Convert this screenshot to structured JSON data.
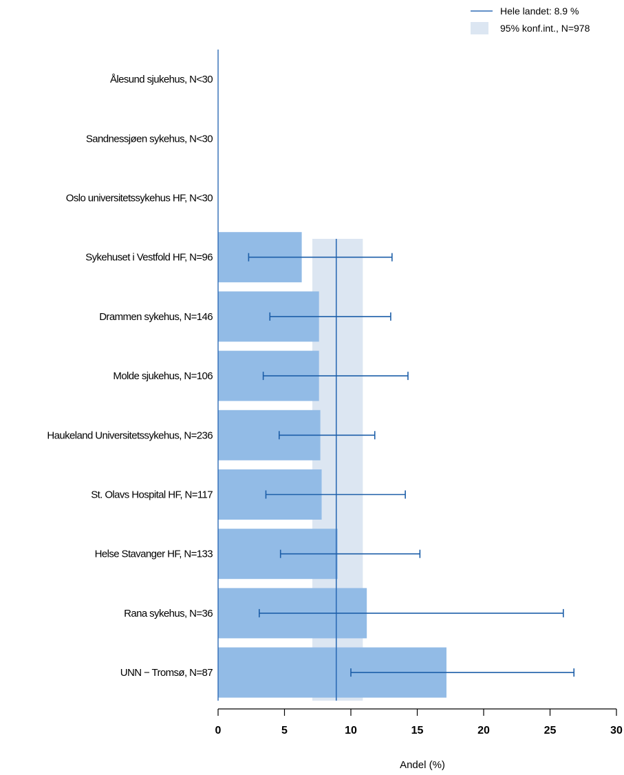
{
  "chart_data": {
    "type": "bar",
    "orientation": "horizontal",
    "categories": [
      "Ålesund sjukehus, N<30",
      "Sandnessjøen sykehus, N<30",
      "Oslo universitetssykehus HF, N<30",
      "Sykehuset i Vestfold HF, N=96",
      "Drammen sykehus, N=146",
      "Molde sjukehus, N=106",
      "Haukeland Universitetssykehus, N=236",
      "St. Olavs Hospital HF, N=117",
      "Helse Stavanger HF, N=133",
      "Rana sykehus, N=36",
      "UNN − Tromsø, N=87"
    ],
    "values": [
      null,
      null,
      null,
      6.3,
      7.6,
      7.6,
      7.7,
      7.8,
      9.0,
      11.2,
      17.2
    ],
    "ci_low": [
      null,
      null,
      null,
      2.3,
      3.9,
      3.4,
      4.6,
      3.6,
      4.7,
      3.1,
      10.0
    ],
    "ci_high": [
      null,
      null,
      null,
      13.1,
      13.0,
      14.3,
      11.8,
      14.1,
      15.2,
      26.0,
      26.8
    ],
    "reference": {
      "label": "Hele landet: 8.9 %",
      "value": 8.9
    },
    "reference_band": {
      "label": "95% konf.int., N=978",
      "low": 7.1,
      "high": 10.9
    },
    "xlabel": "Andel (%)",
    "ylabel": "",
    "xlim": [
      0,
      30
    ],
    "xticks": [
      0,
      5,
      10,
      15,
      20,
      25,
      30
    ],
    "grid": false,
    "legend_position": "top-right",
    "colors": {
      "bar": "#92bbe6",
      "band": "#dce6f2",
      "line": "#2e6bb5",
      "errorbar": "#1c5ea8",
      "axis": "#000000"
    }
  }
}
